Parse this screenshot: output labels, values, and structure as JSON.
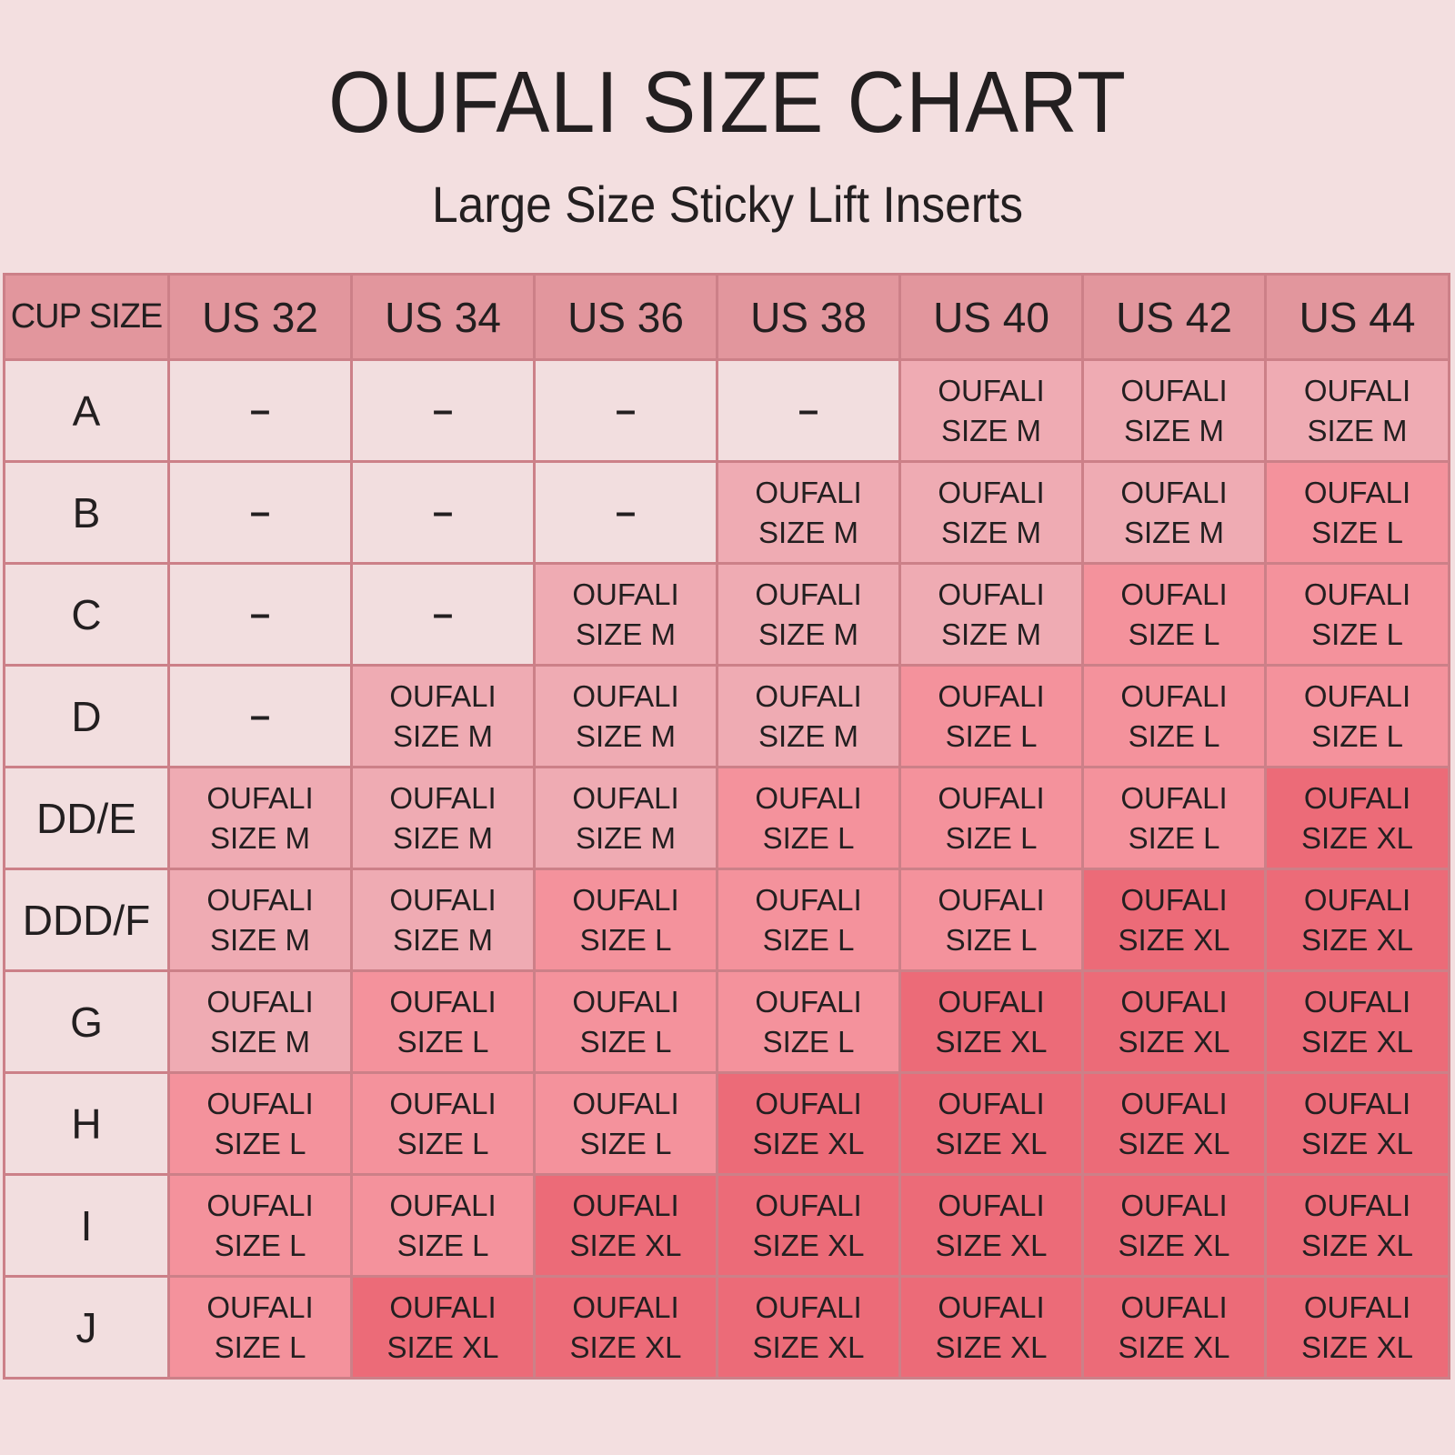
{
  "header": {
    "title": "OUFALI SIZE CHART",
    "subtitle": "Large Size Sticky Lift Inserts"
  },
  "colors": {
    "background": "#f3dfe0",
    "header": "#e2969d",
    "empty": "#f2dedf",
    "size_m": "#efabb3",
    "size_l": "#f4929c",
    "size_xl": "#ec6b78",
    "border": "#cc8088"
  },
  "chart_data": {
    "type": "table",
    "title": "OUFALI SIZE CHART",
    "subtitle": "Large Size Sticky Lift Inserts",
    "corner_label": "CUP SIZE",
    "columns": [
      "US 32",
      "US 34",
      "US 36",
      "US 38",
      "US 40",
      "US 42",
      "US 44"
    ],
    "rows": [
      {
        "cup": "A",
        "values": [
          "-",
          "-",
          "-",
          "-",
          "M",
          "M",
          "M"
        ]
      },
      {
        "cup": "B",
        "values": [
          "-",
          "-",
          "-",
          "M",
          "M",
          "M",
          "L"
        ]
      },
      {
        "cup": "C",
        "values": [
          "-",
          "-",
          "M",
          "M",
          "M",
          "L",
          "L"
        ]
      },
      {
        "cup": "D",
        "values": [
          "-",
          "M",
          "M",
          "M",
          "L",
          "L",
          "L"
        ]
      },
      {
        "cup": "DD/E",
        "values": [
          "M",
          "M",
          "M",
          "L",
          "L",
          "L",
          "XL"
        ]
      },
      {
        "cup": "DDD/F",
        "values": [
          "M",
          "M",
          "L",
          "L",
          "L",
          "XL",
          "XL"
        ]
      },
      {
        "cup": "G",
        "values": [
          "M",
          "L",
          "L",
          "L",
          "XL",
          "XL",
          "XL"
        ]
      },
      {
        "cup": "H",
        "values": [
          "L",
          "L",
          "L",
          "XL",
          "XL",
          "XL",
          "XL"
        ]
      },
      {
        "cup": "I",
        "values": [
          "L",
          "L",
          "XL",
          "XL",
          "XL",
          "XL",
          "XL"
        ]
      },
      {
        "cup": "J",
        "values": [
          "L",
          "XL",
          "XL",
          "XL",
          "XL",
          "XL",
          "XL"
        ]
      }
    ],
    "cell_text_prefix": "OUFALI",
    "cell_text_size_prefix": "SIZE",
    "empty_marker": "–"
  }
}
